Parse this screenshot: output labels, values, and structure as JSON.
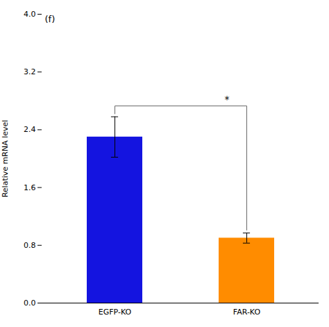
{
  "chart_data": {
    "type": "bar",
    "categories": [
      "EGFP-KO",
      "FAR-KO"
    ],
    "values": [
      2.3,
      0.9
    ],
    "errors": [
      0.28,
      0.07
    ],
    "colors": [
      "#1414e0",
      "#ff8c00"
    ],
    "ylabel": "Relative mRNA level",
    "ylim": [
      0,
      4.0
    ],
    "yticks": [
      {
        "value": 0.0,
        "label": "0.0"
      },
      0.8,
      1.6,
      2.4,
      3.2,
      {
        "value": 4.0,
        "label": "4.0"
      }
    ],
    "annotations": [
      "(f)",
      "*"
    ],
    "grid": false
  }
}
